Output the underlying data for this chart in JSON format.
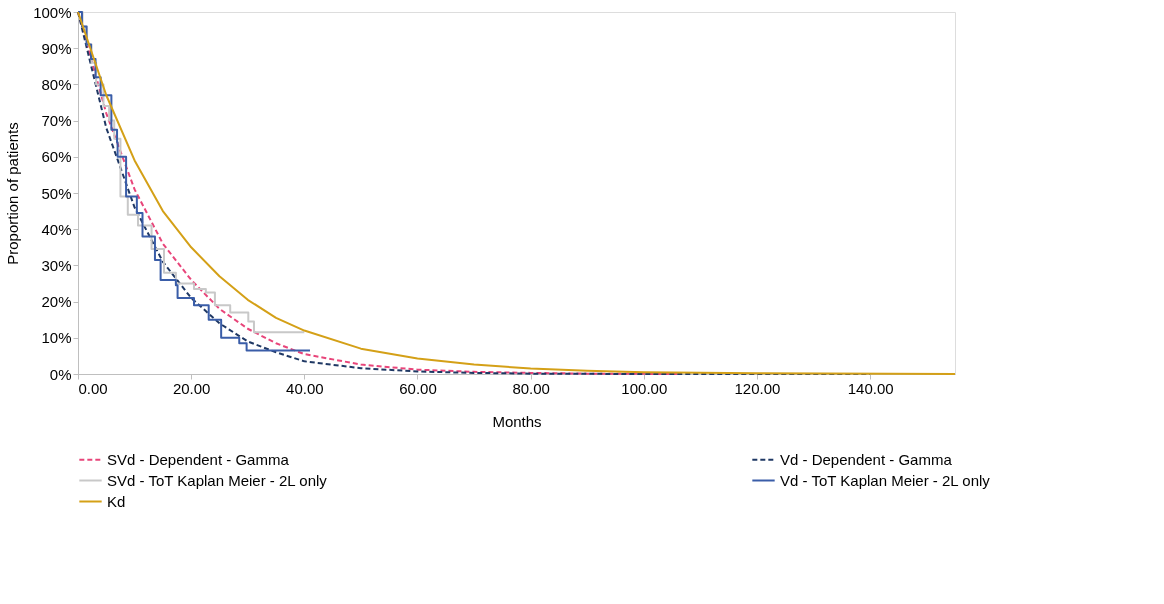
{
  "chart_data": {
    "type": "line",
    "xlabel": "Months",
    "ylabel": "Proportion of patients",
    "xlim": [
      0,
      155
    ],
    "ylim": [
      0,
      100
    ],
    "xticks": [
      {
        "value": 0,
        "label": "0.00"
      },
      {
        "value": 20,
        "label": "20.00"
      },
      {
        "value": 40,
        "label": "40.00"
      },
      {
        "value": 60,
        "label": "60.00"
      },
      {
        "value": 80,
        "label": "80.00"
      },
      {
        "value": 100,
        "label": "100.00"
      },
      {
        "value": 120,
        "label": "120.00"
      },
      {
        "value": 140,
        "label": "140.00"
      }
    ],
    "yticks": [
      {
        "value": 0,
        "label": "0%"
      },
      {
        "value": 10,
        "label": "10%"
      },
      {
        "value": 20,
        "label": "20%"
      },
      {
        "value": 30,
        "label": "30%"
      },
      {
        "value": 40,
        "label": "40%"
      },
      {
        "value": 50,
        "label": "50%"
      },
      {
        "value": 60,
        "label": "60%"
      },
      {
        "value": 70,
        "label": "70%"
      },
      {
        "value": 80,
        "label": "80%"
      },
      {
        "value": 90,
        "label": "90%"
      },
      {
        "value": 100,
        "label": "100%"
      }
    ],
    "grid": false,
    "legend": "bottom",
    "marker": "none",
    "series": [
      {
        "name": "SVd - Dependent - Gamma",
        "type": "line",
        "line_style": "dashed",
        "color": "#e8457a",
        "x": [
          0,
          5,
          10,
          15,
          20,
          25,
          30,
          35,
          40,
          50,
          60,
          70,
          80,
          90,
          106
        ],
        "values": [
          100,
          72,
          51,
          36,
          26,
          18,
          12.5,
          8.5,
          5.5,
          2.6,
          1.2,
          0.6,
          0.3,
          0.1,
          0
        ]
      },
      {
        "name": "Vd - Dependent - Gamma",
        "type": "line",
        "line_style": "dashed",
        "color": "#1f3864",
        "x": [
          0,
          5,
          10,
          15,
          20,
          25,
          30,
          35,
          40,
          50,
          60,
          70,
          80,
          100,
          140
        ],
        "values": [
          100,
          68,
          46,
          31,
          21,
          14,
          9,
          6,
          3.5,
          1.6,
          0.7,
          0.3,
          0.1,
          0,
          0
        ]
      },
      {
        "name": "SVd - ToT Kaplan Meier - 2L only",
        "type": "step",
        "line_style": "solid",
        "color": "#c8c8c8",
        "x": [
          0,
          0.8,
          1.6,
          2.4,
          3.2,
          4.5,
          5.5,
          6.4,
          7.5,
          8.8,
          10.6,
          13.0,
          15.2,
          17.3,
          20.5,
          22.6,
          24.2,
          26.9,
          30.1,
          31.1,
          40
        ],
        "values": [
          100,
          96,
          91,
          86,
          80,
          74,
          70,
          65,
          49,
          44,
          41,
          34.5,
          28,
          25,
          23.5,
          22.5,
          19,
          17,
          14.5,
          11.5,
          11.5
        ]
      },
      {
        "name": "Vd - ToT Kaplan Meier - 2L only",
        "type": "step",
        "line_style": "solid",
        "color": "#3a5da8",
        "x": [
          0,
          0.7,
          1.5,
          2.3,
          3.1,
          4.0,
          5.9,
          6.9,
          7.0,
          8.5,
          10.4,
          11.4,
          13.6,
          14.6,
          17.3,
          17.6,
          20.5,
          23.1,
          25.3,
          28.5,
          29.8,
          41
        ],
        "values": [
          100,
          96,
          91,
          87,
          82,
          77,
          67.5,
          64,
          60,
          49,
          44.5,
          38,
          31.5,
          26,
          24.5,
          21,
          19,
          15,
          10,
          8.5,
          6.5,
          6.5
        ]
      },
      {
        "name": "Kd",
        "type": "line",
        "line_style": "solid",
        "color": "#d4a017",
        "x": [
          0,
          5,
          10,
          15,
          20,
          25,
          30,
          35,
          40,
          50,
          60,
          70,
          80,
          90,
          100,
          120,
          155
        ],
        "values": [
          100,
          77,
          59,
          45,
          35,
          27,
          20.5,
          15.5,
          12,
          7,
          4.3,
          2.6,
          1.5,
          0.9,
          0.5,
          0.2,
          0
        ]
      }
    ]
  }
}
